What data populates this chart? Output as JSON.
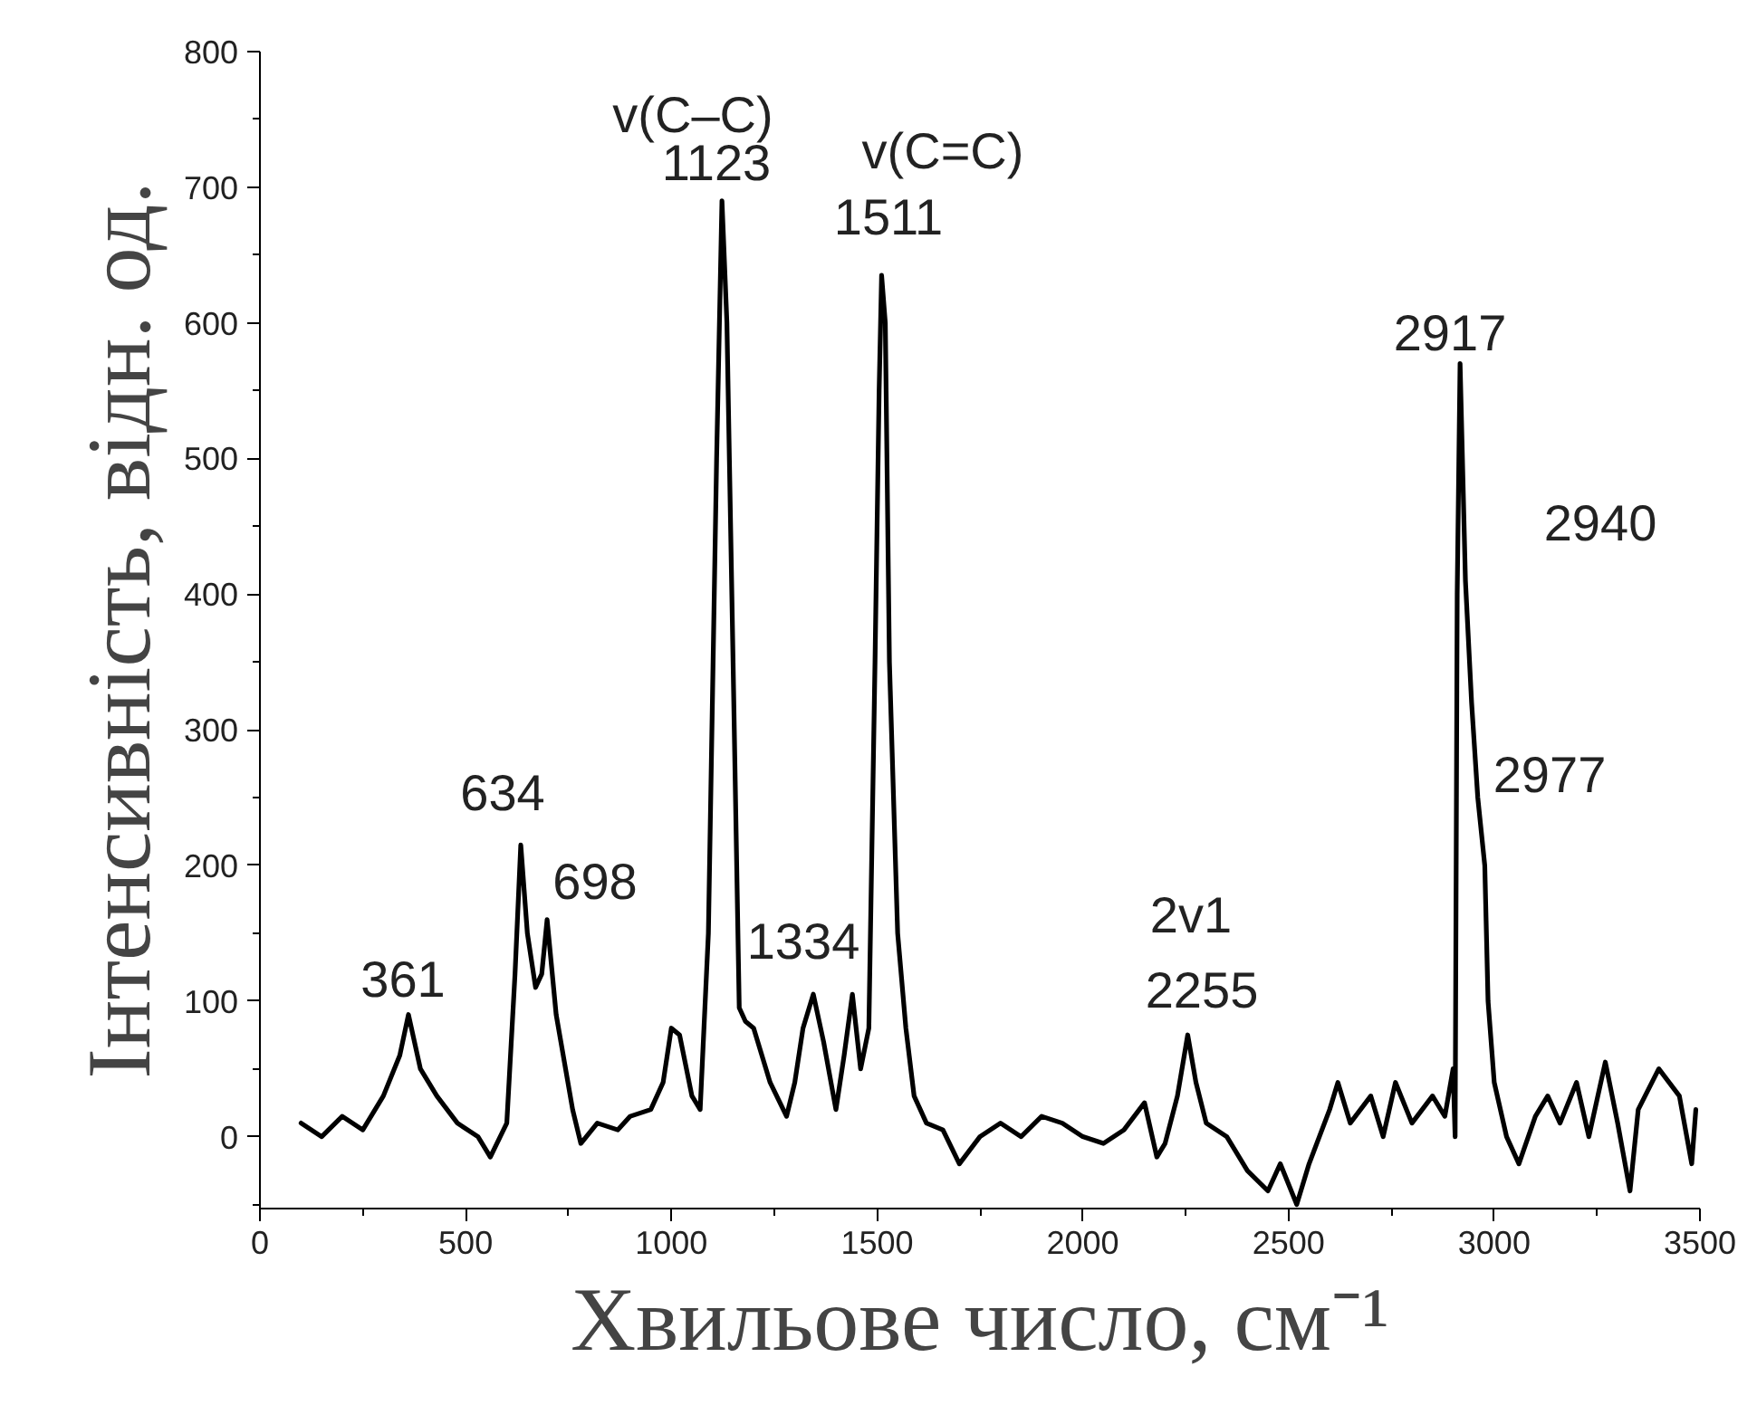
{
  "chart_data": {
    "type": "line",
    "xlabel": "Хвильове число, см⁻¹",
    "ylabel": "Інтенсивність, відн. од.",
    "x": [
      100,
      150,
      200,
      250,
      300,
      340,
      361,
      390,
      430,
      480,
      530,
      560,
      600,
      620,
      634,
      650,
      670,
      685,
      698,
      720,
      760,
      780,
      820,
      870,
      900,
      950,
      980,
      1000,
      1020,
      1050,
      1070,
      1090,
      1110,
      1123,
      1135,
      1150,
      1165,
      1180,
      1200,
      1240,
      1280,
      1300,
      1320,
      1345,
      1370,
      1400,
      1420,
      1440,
      1460,
      1480,
      1495,
      1505,
      1511,
      1520,
      1530,
      1550,
      1570,
      1590,
      1620,
      1660,
      1700,
      1750,
      1800,
      1850,
      1900,
      1950,
      2000,
      2050,
      2100,
      2150,
      2180,
      2200,
      2230,
      2255,
      2275,
      2300,
      2350,
      2400,
      2450,
      2480,
      2520,
      2550,
      2600,
      2620,
      2650,
      2700,
      2730,
      2760,
      2800,
      2850,
      2880,
      2900,
      2905,
      2910,
      2917,
      2930,
      2945,
      2960,
      2977,
      2985,
      3000,
      3030,
      3060,
      3100,
      3130,
      3160,
      3200,
      3230,
      3270,
      3300,
      3330,
      3350,
      3400,
      3450,
      3480,
      3490
    ],
    "series": [
      {
        "color": "#000000",
        "values": [
          10,
          0,
          15,
          5,
          30,
          60,
          90,
          50,
          30,
          10,
          0,
          -15,
          10,
          120,
          215,
          150,
          110,
          120,
          160,
          90,
          20,
          -5,
          10,
          5,
          15,
          20,
          40,
          80,
          75,
          30,
          20,
          150,
          500,
          690,
          600,
          350,
          95,
          85,
          80,
          40,
          15,
          40,
          80,
          105,
          70,
          20,
          60,
          105,
          50,
          80,
          350,
          550,
          635,
          600,
          350,
          150,
          80,
          30,
          10,
          5,
          -20,
          0,
          10,
          0,
          15,
          10,
          0,
          -5,
          5,
          25,
          -15,
          -5,
          30,
          75,
          40,
          10,
          0,
          -25,
          -40,
          -20,
          -50,
          -20,
          20,
          40,
          10,
          30,
          0,
          40,
          10,
          30,
          15,
          50,
          0,
          400,
          570,
          410,
          320,
          250,
          200,
          100,
          40,
          0,
          -20,
          15,
          30,
          10,
          40,
          0,
          55,
          10,
          -40,
          20,
          50,
          30,
          -20,
          20
        ]
      }
    ],
    "xlim": [
      0,
      3500
    ],
    "ylim": [
      -53,
      800
    ],
    "xticks": [
      0,
      500,
      1000,
      1500,
      2000,
      2500,
      3000,
      3500
    ],
    "yticks": [
      0,
      100,
      200,
      300,
      400,
      500,
      600,
      700,
      800
    ],
    "grid": false,
    "line_style": "solid",
    "marker": "none",
    "annotations": [
      "361",
      "634",
      "698",
      "v(C–C)",
      "1123",
      "v(C=C)",
      "1511",
      "1334",
      "2v1",
      "2255",
      "2917",
      "2940",
      "2977"
    ]
  }
}
